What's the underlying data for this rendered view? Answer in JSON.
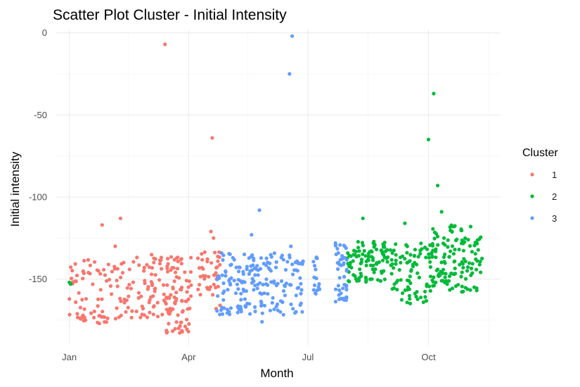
{
  "chart_data": {
    "type": "scatter",
    "title": "Scatter Plot Cluster - Initial Intensity",
    "xlabel": "Month",
    "ylabel": "Initial intensity",
    "x_is_date": true,
    "xlim": [
      "2023-12-22",
      "2024-11-25"
    ],
    "ylim": [
      -190,
      2
    ],
    "x_ticks": [
      {
        "value": "2024-01-01",
        "label": "Jan"
      },
      {
        "value": "2024-04-01",
        "label": "Apr"
      },
      {
        "value": "2024-07-01",
        "label": "Jul"
      },
      {
        "value": "2024-10-01",
        "label": "Oct"
      }
    ],
    "x_minor_ticks": [
      "2024-02-15",
      "2024-05-16",
      "2024-08-16",
      "2024-11-16"
    ],
    "y_ticks": [
      0,
      -50,
      -100,
      -150
    ],
    "y_minor_ticks": [
      -25,
      -75,
      -125,
      -175
    ],
    "grid": true,
    "legend": {
      "title": "Cluster",
      "position": "right",
      "entries": [
        {
          "label": "1",
          "color": "#F8766D"
        },
        {
          "label": "2",
          "color": "#00BA38"
        },
        {
          "label": "3",
          "color": "#619CFF"
        }
      ]
    },
    "series": [
      {
        "name": "1",
        "color": "#F8766D",
        "generated_bands": [
          {
            "x_start": "2024-01-01",
            "x_end": "2024-02-20",
            "y_min": -177,
            "y_max": -138,
            "count": 95
          },
          {
            "x_start": "2024-02-20",
            "x_end": "2024-03-15",
            "y_min": -175,
            "y_max": -135,
            "count": 55
          },
          {
            "x_start": "2024-03-15",
            "x_end": "2024-04-03",
            "y_min": -183,
            "y_max": -136,
            "count": 85
          },
          {
            "x_start": "2024-04-08",
            "x_end": "2024-04-25",
            "y_min": -160,
            "y_max": -133,
            "count": 40
          }
        ],
        "points": [
          {
            "x": "2024-03-14",
            "y": -7
          },
          {
            "x": "2024-04-19",
            "y": -64
          },
          {
            "x": "2024-02-09",
            "y": -113
          },
          {
            "x": "2024-01-26",
            "y": -117
          },
          {
            "x": "2024-04-18",
            "y": -121
          },
          {
            "x": "2024-04-20",
            "y": -125
          },
          {
            "x": "2024-02-05",
            "y": -130
          },
          {
            "x": "2024-04-25",
            "y": -166
          },
          {
            "x": "2024-04-22",
            "y": -168
          }
        ]
      },
      {
        "name": "2",
        "color": "#00BA38",
        "generated_bands": [
          {
            "x_start": "2024-07-31",
            "x_end": "2024-08-31",
            "y_min": -152,
            "y_max": -127,
            "count": 95
          },
          {
            "x_start": "2024-09-01",
            "x_end": "2024-09-30",
            "y_min": -165,
            "y_max": -128,
            "count": 75
          },
          {
            "x_start": "2024-10-01",
            "x_end": "2024-11-11",
            "y_min": -158,
            "y_max": -117,
            "count": 140
          }
        ],
        "points": [
          {
            "x": "2024-01-01",
            "y": -152
          },
          {
            "x": "2024-01-02",
            "y": -153
          },
          {
            "x": "2024-10-05",
            "y": -37
          },
          {
            "x": "2024-10-01",
            "y": -65
          },
          {
            "x": "2024-10-08",
            "y": -93
          },
          {
            "x": "2024-08-12",
            "y": -113
          },
          {
            "x": "2024-09-13",
            "y": -116
          },
          {
            "x": "2024-10-11",
            "y": -109
          }
        ]
      },
      {
        "name": "3",
        "color": "#619CFF",
        "generated_bands": [
          {
            "x_start": "2024-04-22",
            "x_end": "2024-06-28",
            "y_min": -172,
            "y_max": -134,
            "count": 190
          },
          {
            "x_start": "2024-07-05",
            "x_end": "2024-07-10",
            "y_min": -164,
            "y_max": -134,
            "count": 16
          },
          {
            "x_start": "2024-07-22",
            "x_end": "2024-07-31",
            "y_min": -165,
            "y_max": -128,
            "count": 45
          }
        ],
        "points": [
          {
            "x": "2024-06-19",
            "y": -2
          },
          {
            "x": "2024-06-17",
            "y": -25
          },
          {
            "x": "2024-05-25",
            "y": -108
          },
          {
            "x": "2024-05-19",
            "y": -123
          },
          {
            "x": "2024-06-18",
            "y": -130
          },
          {
            "x": "2024-05-27",
            "y": -176
          },
          {
            "x": "2024-06-10",
            "y": -170
          }
        ]
      }
    ]
  }
}
